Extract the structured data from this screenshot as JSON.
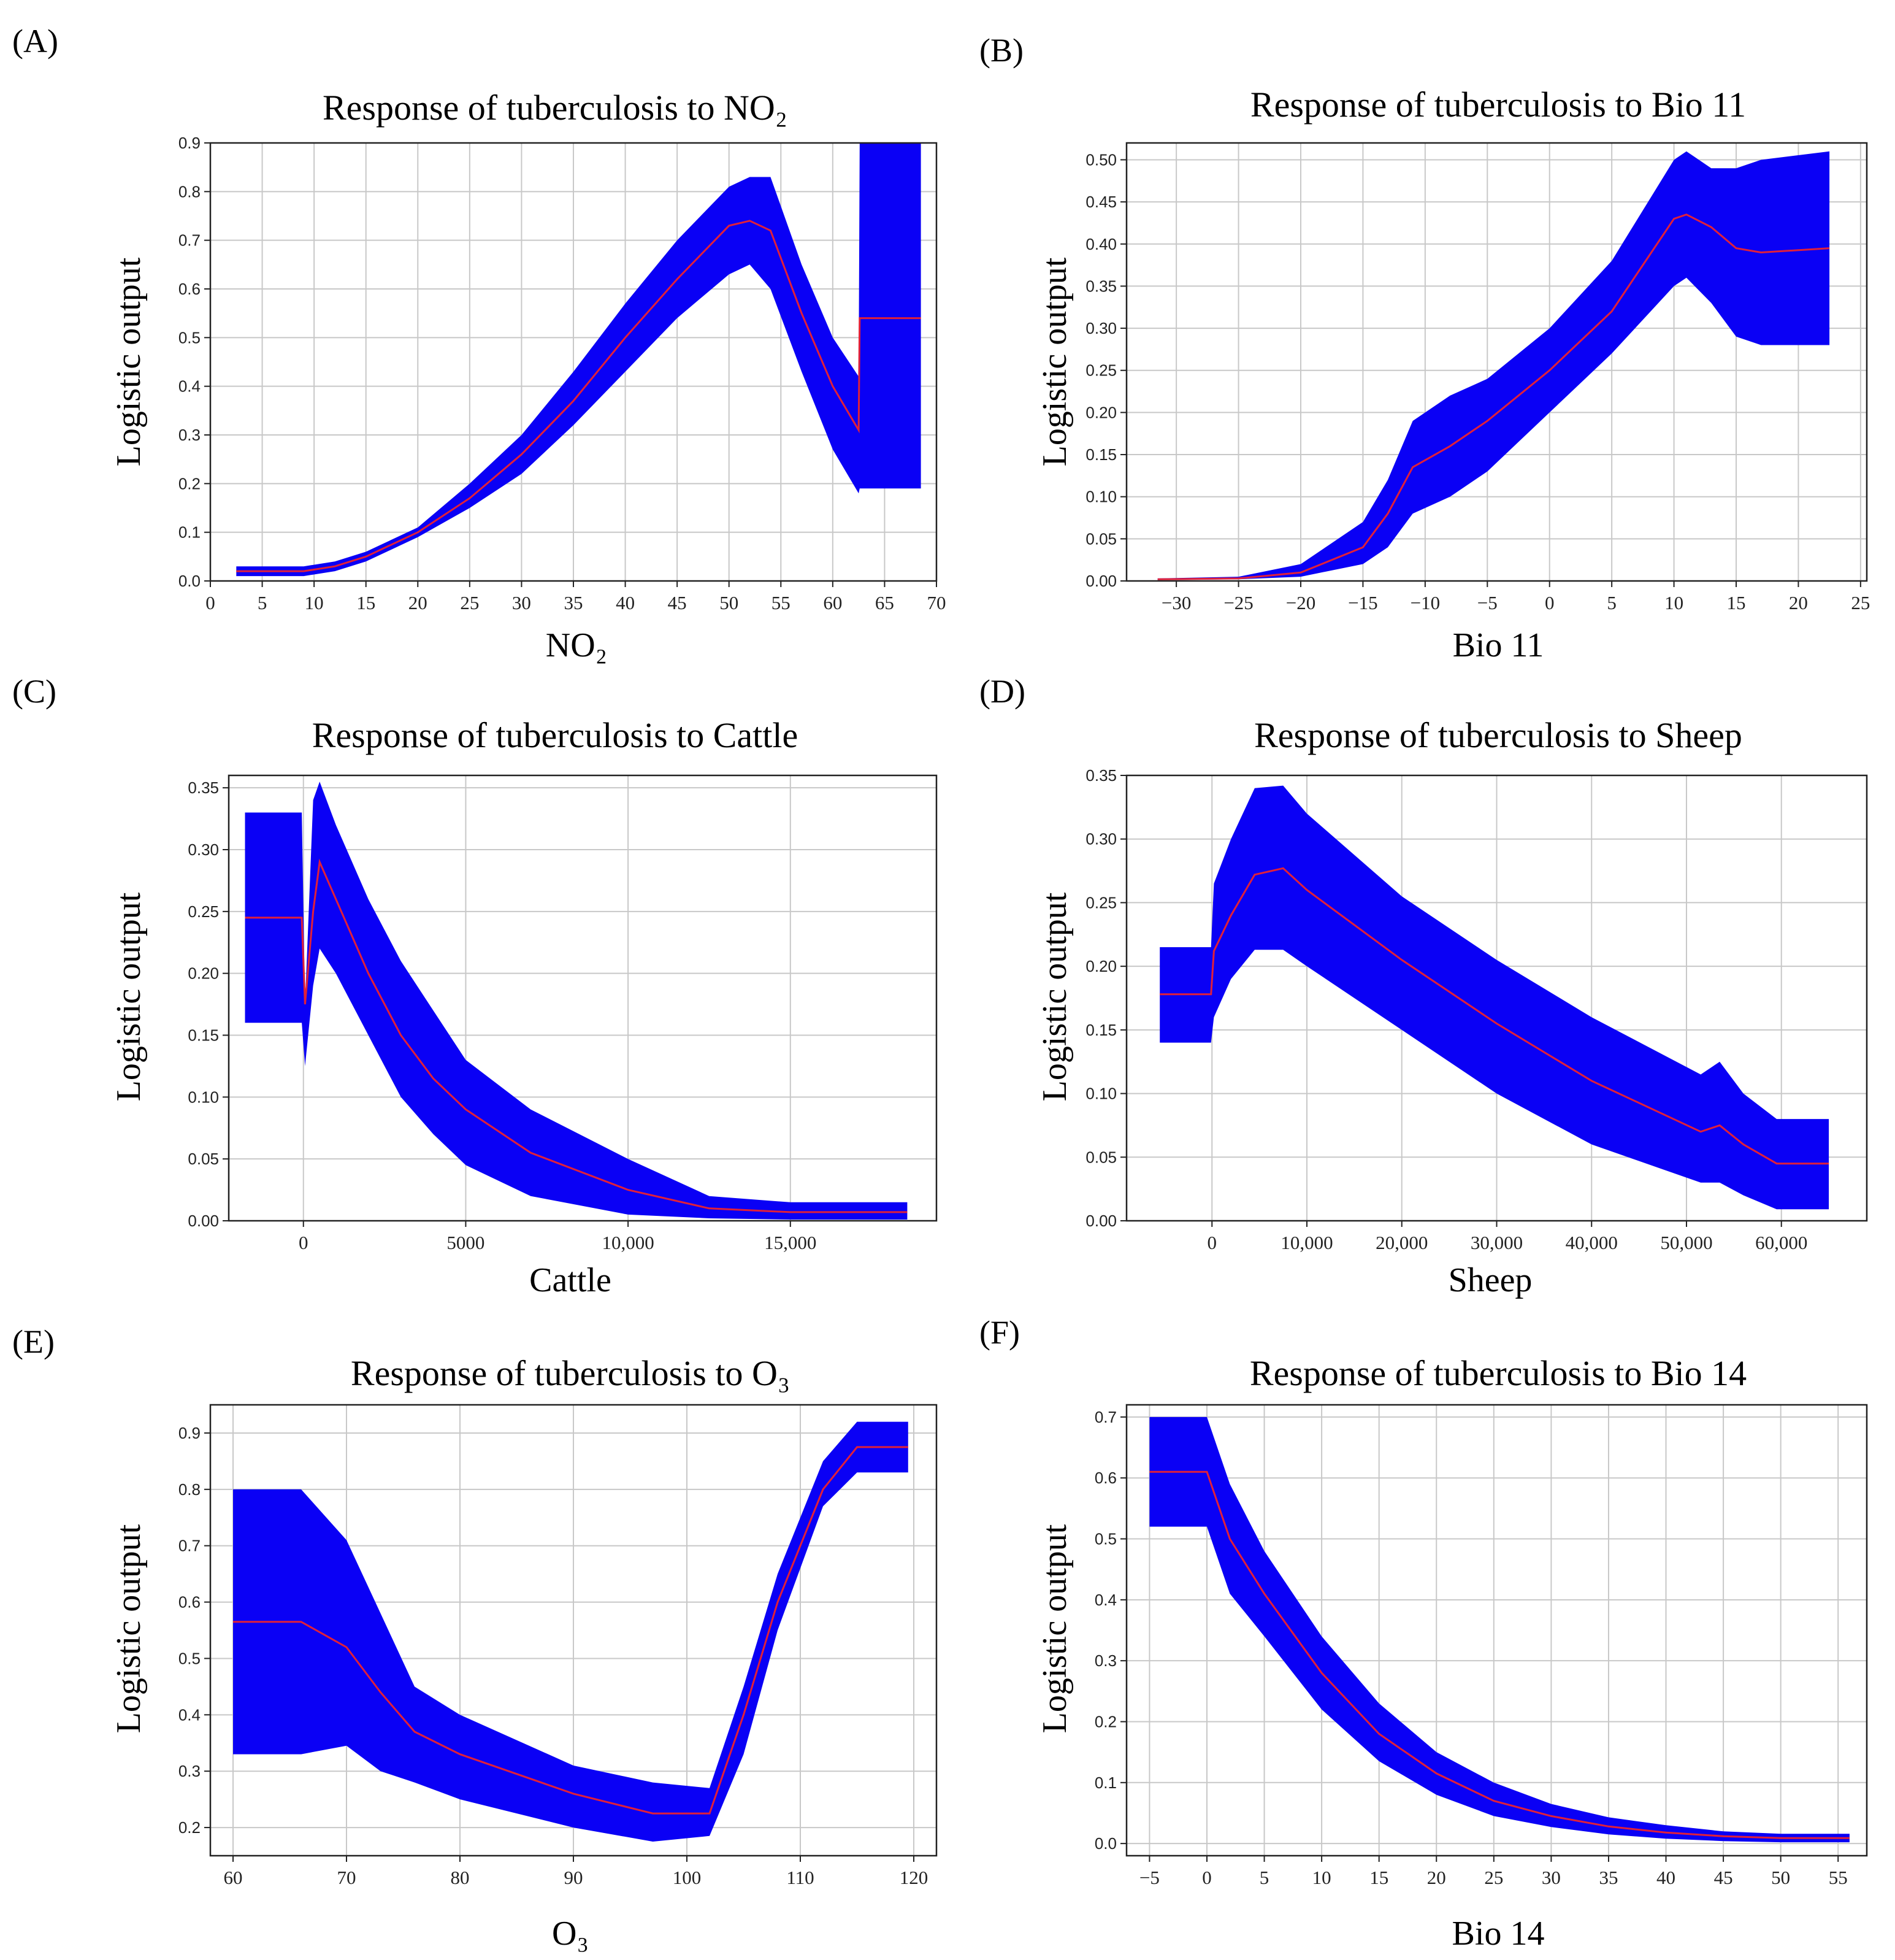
{
  "colors": {
    "band": "#0a00f5",
    "mean": "#e0203a"
  },
  "chart_data": [
    {
      "panel": "(A)",
      "type": "area",
      "title": "Response of tuberculosis to NO₂",
      "xlabel": "NO₂",
      "ylabel": "Logistic output",
      "xlim": [
        0,
        70
      ],
      "ylim": [
        0,
        0.9
      ],
      "xticks": [
        0,
        5,
        10,
        15,
        20,
        25,
        30,
        35,
        40,
        45,
        50,
        55,
        60,
        65,
        70
      ],
      "yticks": [
        0.0,
        0.1,
        0.2,
        0.3,
        0.4,
        0.5,
        0.6,
        0.7,
        0.8,
        0.9
      ],
      "xtick_labels": [
        "0",
        "5",
        "10",
        "15",
        "20",
        "25",
        "30",
        "35",
        "40",
        "45",
        "50",
        "55",
        "60",
        "65",
        "70"
      ],
      "ytick_labels": [
        "0.0",
        "0.1",
        "0.2",
        "0.3",
        "0.4",
        "0.5",
        "0.6",
        "0.7",
        "0.8",
        "0.9"
      ],
      "series": [
        {
          "name": "mean",
          "x": [
            2.5,
            9,
            12,
            15,
            20,
            25,
            30,
            35,
            40,
            45,
            50,
            52,
            54,
            57,
            60,
            62.5,
            62.6,
            68.5
          ],
          "y": [
            0.02,
            0.02,
            0.03,
            0.05,
            0.1,
            0.17,
            0.26,
            0.37,
            0.5,
            0.62,
            0.73,
            0.74,
            0.72,
            0.55,
            0.4,
            0.31,
            0.54,
            0.54
          ],
          "upper": [
            0.03,
            0.03,
            0.04,
            0.06,
            0.11,
            0.2,
            0.3,
            0.43,
            0.57,
            0.7,
            0.81,
            0.83,
            0.83,
            0.65,
            0.5,
            0.42,
            0.9,
            0.9
          ],
          "lower": [
            0.01,
            0.01,
            0.02,
            0.04,
            0.09,
            0.15,
            0.22,
            0.32,
            0.43,
            0.54,
            0.63,
            0.65,
            0.6,
            0.43,
            0.27,
            0.18,
            0.19,
            0.19
          ]
        }
      ]
    },
    {
      "panel": "(B)",
      "type": "area",
      "title": "Response of tuberculosis to Bio 11",
      "xlabel": "Bio 11",
      "ylabel": "Logistic output",
      "xlim": [
        -34,
        25.5
      ],
      "ylim": [
        0,
        0.52
      ],
      "xticks": [
        -30,
        -25,
        -20,
        -15,
        -10,
        -5,
        0,
        5,
        10,
        15,
        20,
        25
      ],
      "yticks": [
        0.0,
        0.05,
        0.1,
        0.15,
        0.2,
        0.25,
        0.3,
        0.35,
        0.4,
        0.45,
        0.5
      ],
      "xtick_labels": [
        "−30",
        "−25",
        "−20",
        "−15",
        "−10",
        "−5",
        "0",
        "5",
        "10",
        "15",
        "20",
        "25"
      ],
      "ytick_labels": [
        "0.00",
        "0.05",
        "0.10",
        "0.15",
        "0.20",
        "0.25",
        "0.30",
        "0.35",
        "0.40",
        "0.45",
        "0.50"
      ],
      "series": [
        {
          "name": "mean",
          "x": [
            -31.5,
            -25,
            -20,
            -15,
            -13,
            -11,
            -8,
            -5,
            0,
            5,
            10,
            11,
            13,
            15,
            17,
            22.5
          ],
          "y": [
            0.002,
            0.003,
            0.01,
            0.04,
            0.08,
            0.135,
            0.16,
            0.19,
            0.25,
            0.32,
            0.43,
            0.435,
            0.42,
            0.395,
            0.39,
            0.395
          ],
          "upper": [
            0.003,
            0.005,
            0.02,
            0.07,
            0.12,
            0.19,
            0.22,
            0.24,
            0.3,
            0.38,
            0.5,
            0.51,
            0.49,
            0.49,
            0.5,
            0.51
          ],
          "lower": [
            0.001,
            0.002,
            0.005,
            0.02,
            0.04,
            0.08,
            0.1,
            0.13,
            0.2,
            0.27,
            0.35,
            0.36,
            0.33,
            0.29,
            0.28,
            0.28
          ]
        }
      ]
    },
    {
      "panel": "(C)",
      "type": "area",
      "title": "Response of tuberculosis to Cattle",
      "xlabel": "Cattle",
      "ylabel": "Logistic output",
      "xlim": [
        -2300,
        19500
      ],
      "ylim": [
        0,
        0.36
      ],
      "xticks": [
        0,
        5000,
        10000,
        15000
      ],
      "yticks": [
        0.0,
        0.05,
        0.1,
        0.15,
        0.2,
        0.25,
        0.3,
        0.35
      ],
      "xtick_labels": [
        "0",
        "5000",
        "10,000",
        "15,000"
      ],
      "ytick_labels": [
        "0.00",
        "0.05",
        "0.10",
        "0.15",
        "0.20",
        "0.25",
        "0.30",
        "0.35"
      ],
      "series": [
        {
          "name": "mean",
          "x": [
            -1800,
            -50,
            50,
            300,
            500,
            1000,
            2000,
            3000,
            4000,
            5000,
            7000,
            10000,
            12500,
            15000,
            18600
          ],
          "y": [
            0.245,
            0.245,
            0.175,
            0.25,
            0.29,
            0.26,
            0.2,
            0.15,
            0.115,
            0.09,
            0.055,
            0.025,
            0.01,
            0.007,
            0.007
          ],
          "upper": [
            0.33,
            0.33,
            0.175,
            0.34,
            0.355,
            0.32,
            0.26,
            0.21,
            0.17,
            0.13,
            0.09,
            0.05,
            0.02,
            0.015,
            0.015
          ],
          "lower": [
            0.16,
            0.16,
            0.125,
            0.19,
            0.22,
            0.2,
            0.15,
            0.1,
            0.07,
            0.045,
            0.02,
            0.005,
            0.002,
            0.001,
            0.001
          ]
        }
      ]
    },
    {
      "panel": "(D)",
      "type": "area",
      "title": "Response of tuberculosis to Sheep",
      "xlabel": "Sheep",
      "ylabel": "Logistic output",
      "xlim": [
        -9000,
        69000
      ],
      "ylim": [
        0,
        0.35
      ],
      "xticks": [
        0,
        10000,
        20000,
        30000,
        40000,
        50000,
        60000
      ],
      "yticks": [
        0.0,
        0.05,
        0.1,
        0.15,
        0.2,
        0.25,
        0.3,
        0.35
      ],
      "xtick_labels": [
        "0",
        "10,000",
        "20,000",
        "30,000",
        "40,000",
        "50,000",
        "60,000"
      ],
      "ytick_labels": [
        "0.00",
        "0.05",
        "0.10",
        "0.15",
        "0.20",
        "0.25",
        "0.30",
        "0.35"
      ],
      "series": [
        {
          "name": "mean",
          "x": [
            -5500,
            -100,
            200,
            2000,
            4500,
            7500,
            10000,
            20000,
            30000,
            40000,
            51500,
            53500,
            56000,
            59500,
            65000
          ],
          "y": [
            0.178,
            0.178,
            0.212,
            0.24,
            0.272,
            0.277,
            0.26,
            0.205,
            0.155,
            0.11,
            0.07,
            0.075,
            0.06,
            0.045,
            0.045
          ],
          "upper": [
            0.215,
            0.215,
            0.265,
            0.3,
            0.34,
            0.342,
            0.32,
            0.255,
            0.205,
            0.16,
            0.115,
            0.125,
            0.1,
            0.08,
            0.08
          ],
          "lower": [
            0.14,
            0.14,
            0.16,
            0.19,
            0.213,
            0.213,
            0.2,
            0.15,
            0.1,
            0.06,
            0.03,
            0.03,
            0.02,
            0.009,
            0.009
          ]
        }
      ]
    },
    {
      "panel": "(E)",
      "type": "area",
      "title": "Response of tuberculosis to O₃",
      "xlabel": "O₃",
      "ylabel": "Logistic output",
      "xlim": [
        58,
        122
      ],
      "ylim": [
        0.15,
        0.95
      ],
      "xticks": [
        60,
        70,
        80,
        90,
        100,
        110,
        120
      ],
      "yticks": [
        0.2,
        0.3,
        0.4,
        0.5,
        0.6,
        0.7,
        0.8,
        0.9
      ],
      "xtick_labels": [
        "60",
        "70",
        "80",
        "90",
        "100",
        "110",
        "120"
      ],
      "ytick_labels": [
        "0.2",
        "0.3",
        "0.4",
        "0.5",
        "0.6",
        "0.7",
        "0.8",
        "0.9"
      ],
      "series": [
        {
          "name": "mean",
          "x": [
            60,
            66,
            70,
            73,
            76,
            80,
            90,
            97,
            102,
            105,
            108,
            112,
            115,
            119.5
          ],
          "y": [
            0.565,
            0.565,
            0.52,
            0.44,
            0.37,
            0.33,
            0.26,
            0.225,
            0.225,
            0.4,
            0.6,
            0.8,
            0.875,
            0.875
          ],
          "upper": [
            0.8,
            0.8,
            0.71,
            0.58,
            0.45,
            0.4,
            0.31,
            0.28,
            0.27,
            0.45,
            0.65,
            0.85,
            0.92,
            0.92
          ],
          "lower": [
            0.33,
            0.33,
            0.345,
            0.3,
            0.28,
            0.25,
            0.2,
            0.175,
            0.185,
            0.33,
            0.55,
            0.77,
            0.83,
            0.83
          ]
        }
      ]
    },
    {
      "panel": "(F)",
      "type": "area",
      "title": "Response of tuberculosis to Bio 14",
      "xlabel": "Bio 14",
      "ylabel": "Logistic output",
      "xlim": [
        -7,
        57.5
      ],
      "ylim": [
        -0.02,
        0.72
      ],
      "xticks": [
        -5,
        0,
        5,
        10,
        15,
        20,
        25,
        30,
        35,
        40,
        45,
        50,
        55
      ],
      "yticks": [
        0.0,
        0.1,
        0.2,
        0.3,
        0.4,
        0.5,
        0.6,
        0.7
      ],
      "xtick_labels": [
        "−5",
        "0",
        "5",
        "10",
        "15",
        "20",
        "25",
        "30",
        "35",
        "40",
        "45",
        "50",
        "55"
      ],
      "ytick_labels": [
        "0.0",
        "0.1",
        "0.2",
        "0.3",
        "0.4",
        "0.5",
        "0.6",
        "0.7"
      ],
      "series": [
        {
          "name": "mean",
          "x": [
            -5,
            0,
            2,
            5,
            10,
            15,
            20,
            25,
            30,
            35,
            40,
            45,
            50,
            56
          ],
          "y": [
            0.61,
            0.61,
            0.5,
            0.41,
            0.28,
            0.18,
            0.115,
            0.07,
            0.045,
            0.028,
            0.018,
            0.012,
            0.009,
            0.009
          ],
          "upper": [
            0.7,
            0.7,
            0.59,
            0.48,
            0.34,
            0.23,
            0.15,
            0.1,
            0.065,
            0.043,
            0.03,
            0.02,
            0.016,
            0.016
          ],
          "lower": [
            0.52,
            0.52,
            0.41,
            0.34,
            0.22,
            0.135,
            0.08,
            0.045,
            0.027,
            0.015,
            0.008,
            0.004,
            0.002,
            0.002
          ]
        }
      ]
    }
  ]
}
